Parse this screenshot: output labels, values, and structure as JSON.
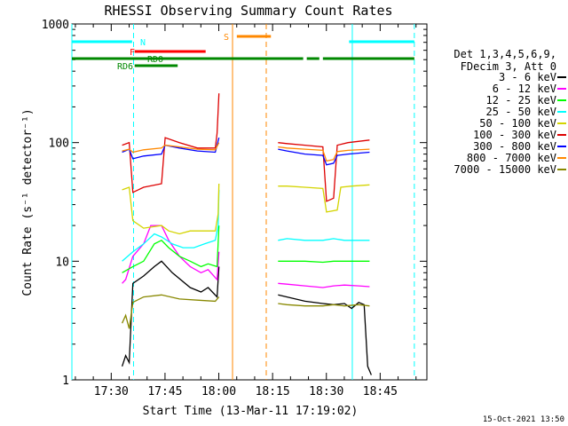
{
  "chart_data": {
    "type": "line",
    "title": "RHESSI Observing Summary Count Rates",
    "xlabel": "Start Time (13-Mar-11 17:19:02)",
    "ylabel": "Count Rate (s⁻¹ detector⁻¹)",
    "yscale": "log",
    "ylim": [
      1,
      1000
    ],
    "xlim_minutes": [
      0,
      99
    ],
    "x_ticks": [
      {
        "label": "17:30",
        "m": 10.97
      },
      {
        "label": "17:45",
        "m": 25.97
      },
      {
        "label": "18:00",
        "m": 40.97
      },
      {
        "label": "18:15",
        "m": 55.97
      },
      {
        "label": "18:30",
        "m": 70.97
      },
      {
        "label": "18:45",
        "m": 85.97
      }
    ],
    "y_ticks": [
      {
        "label": "1",
        "v": 1
      },
      {
        "label": "10",
        "v": 10
      },
      {
        "label": "100",
        "v": 100
      },
      {
        "label": "1000",
        "v": 1000
      }
    ],
    "info": [
      "Det 1,3,4,5,6,9,",
      "FDecim 3, Att 0"
    ],
    "footer_date": "15-Oct-2021 13:50",
    "series": [
      {
        "name": "3 - 6 keV",
        "color": "#000000",
        "segments": [
          [
            [
              14,
              1.3
            ],
            [
              15,
              1.6
            ],
            [
              16,
              1.4
            ],
            [
              17,
              6.5
            ],
            [
              20,
              7.5
            ],
            [
              23,
              9
            ],
            [
              25,
              10
            ],
            [
              28,
              8
            ],
            [
              33,
              6
            ],
            [
              36,
              5.5
            ],
            [
              38,
              6
            ],
            [
              40.5,
              5
            ],
            [
              41,
              9
            ]
          ],
          [
            [
              57.5,
              5.2
            ],
            [
              60,
              5
            ],
            [
              65,
              4.6
            ],
            [
              70,
              4.4
            ],
            [
              73,
              4.3
            ],
            [
              76,
              4.4
            ],
            [
              78,
              4
            ],
            [
              80,
              4.5
            ],
            [
              81.5,
              4.3
            ],
            [
              82.5,
              1.3
            ],
            [
              83.5,
              1.1
            ]
          ]
        ]
      },
      {
        "name": "6 - 12 keV",
        "color": "#ff00ff",
        "segments": [
          [
            [
              14,
              6.5
            ],
            [
              15,
              7
            ],
            [
              17,
              11
            ],
            [
              20,
              14
            ],
            [
              22,
              20
            ],
            [
              25,
              20
            ],
            [
              27,
              15
            ],
            [
              30,
              11
            ],
            [
              33,
              9
            ],
            [
              36,
              8
            ],
            [
              38,
              8.5
            ],
            [
              40.5,
              7
            ],
            [
              41,
              12
            ]
          ],
          [
            [
              57.5,
              6.5
            ],
            [
              60,
              6.4
            ],
            [
              65,
              6.2
            ],
            [
              70,
              6
            ],
            [
              73,
              6.2
            ],
            [
              76,
              6.3
            ],
            [
              80,
              6.2
            ],
            [
              83,
              6.1
            ]
          ]
        ]
      },
      {
        "name": "12 - 25 keV",
        "color": "#00ff00",
        "segments": [
          [
            [
              14,
              8
            ],
            [
              17,
              9
            ],
            [
              20,
              10
            ],
            [
              23,
              14
            ],
            [
              25,
              15
            ],
            [
              27,
              13
            ],
            [
              30,
              11
            ],
            [
              33,
              10
            ],
            [
              36,
              9
            ],
            [
              38,
              9.5
            ],
            [
              40.5,
              9
            ],
            [
              41,
              20
            ]
          ],
          [
            [
              57.5,
              10
            ],
            [
              60,
              10
            ],
            [
              65,
              10
            ],
            [
              70,
              9.8
            ],
            [
              73,
              10
            ],
            [
              76,
              10
            ],
            [
              80,
              10
            ],
            [
              83,
              10
            ]
          ]
        ]
      },
      {
        "name": "25 - 50 keV",
        "color": "#00ffff",
        "segments": [
          [
            [
              14,
              10
            ],
            [
              17,
              12
            ],
            [
              20,
              14
            ],
            [
              23,
              17
            ],
            [
              25,
              16
            ],
            [
              28,
              14
            ],
            [
              31,
              13
            ],
            [
              34,
              13
            ],
            [
              37,
              14
            ],
            [
              40,
              15
            ],
            [
              40.8,
              20
            ],
            [
              41,
              40
            ]
          ],
          [
            [
              57.5,
              15
            ],
            [
              60,
              15.5
            ],
            [
              65,
              15
            ],
            [
              70,
              15
            ],
            [
              73,
              15.5
            ],
            [
              76,
              15
            ],
            [
              80,
              15
            ],
            [
              83,
              15
            ]
          ]
        ]
      },
      {
        "name": "50 - 100 keV",
        "color": "#d4d400",
        "segments": [
          [
            [
              14,
              40
            ],
            [
              16,
              42
            ],
            [
              17,
              22
            ],
            [
              20,
              19
            ],
            [
              25,
              20
            ],
            [
              27,
              18
            ],
            [
              30,
              17
            ],
            [
              33,
              18
            ],
            [
              37,
              18
            ],
            [
              40,
              18
            ],
            [
              40.8,
              25
            ],
            [
              41,
              45
            ]
          ],
          [
            [
              57.5,
              43
            ],
            [
              60,
              43
            ],
            [
              65,
              42
            ],
            [
              70,
              41
            ],
            [
              71,
              26
            ],
            [
              74,
              27
            ],
            [
              75,
              42
            ],
            [
              78,
              43
            ],
            [
              83,
              44
            ]
          ]
        ]
      },
      {
        "name": "100 - 300 keV",
        "color": "#dd0000",
        "segments": [
          [
            [
              14,
              95
            ],
            [
              16,
              100
            ],
            [
              17,
              38
            ],
            [
              20,
              42
            ],
            [
              25,
              45
            ],
            [
              26,
              110
            ],
            [
              30,
              100
            ],
            [
              35,
              90
            ],
            [
              40,
              90
            ],
            [
              40.5,
              120
            ],
            [
              41,
              260
            ]
          ],
          [
            [
              57.5,
              100
            ],
            [
              60,
              98
            ],
            [
              65,
              95
            ],
            [
              70,
              92
            ],
            [
              71,
              32
            ],
            [
              73,
              34
            ],
            [
              74,
              95
            ],
            [
              77,
              100
            ],
            [
              83,
              105
            ]
          ]
        ]
      },
      {
        "name": "300 - 800 keV",
        "color": "#0000ff",
        "segments": [
          [
            [
              14,
              83
            ],
            [
              16,
              88
            ],
            [
              17,
              73
            ],
            [
              20,
              77
            ],
            [
              25,
              80
            ],
            [
              26,
              95
            ],
            [
              30,
              90
            ],
            [
              35,
              85
            ],
            [
              40,
              83
            ],
            [
              41,
              110
            ]
          ],
          [
            [
              57.5,
              88
            ],
            [
              60,
              85
            ],
            [
              65,
              80
            ],
            [
              70,
              78
            ],
            [
              71,
              65
            ],
            [
              73,
              67
            ],
            [
              74,
              78
            ],
            [
              77,
              80
            ],
            [
              83,
              83
            ]
          ]
        ]
      },
      {
        "name": "800 - 7000 keV",
        "color": "#ff8800",
        "segments": [
          [
            [
              14,
              85
            ],
            [
              16,
              88
            ],
            [
              17,
              83
            ],
            [
              20,
              87
            ],
            [
              25,
              90
            ],
            [
              26,
              95
            ],
            [
              30,
              92
            ],
            [
              35,
              88
            ],
            [
              40,
              87
            ],
            [
              41,
              100
            ]
          ],
          [
            [
              57.5,
              92
            ],
            [
              60,
              90
            ],
            [
              65,
              88
            ],
            [
              70,
              86
            ],
            [
              71,
              70
            ],
            [
              73,
              72
            ],
            [
              74,
              84
            ],
            [
              77,
              86
            ],
            [
              83,
              88
            ]
          ]
        ]
      },
      {
        "name": "7000 - 15000 keV",
        "color": "#888800",
        "segments": [
          [
            [
              14,
              3
            ],
            [
              15,
              3.5
            ],
            [
              16,
              2.7
            ],
            [
              17,
              4.5
            ],
            [
              20,
              5
            ],
            [
              25,
              5.2
            ],
            [
              30,
              4.8
            ],
            [
              35,
              4.7
            ],
            [
              40,
              4.6
            ],
            [
              41,
              5
            ]
          ],
          [
            [
              57.5,
              4.4
            ],
            [
              60,
              4.3
            ],
            [
              65,
              4.2
            ],
            [
              70,
              4.2
            ],
            [
              73,
              4.3
            ],
            [
              76,
              4.2
            ],
            [
              80,
              4.3
            ],
            [
              83,
              4.2
            ]
          ]
        ]
      }
    ],
    "state_bars": [
      {
        "label": "N",
        "color": "#00ffff",
        "segments": [
          [
            0,
            16.8
          ],
          [
            77.3,
            95.5
          ]
        ]
      },
      {
        "label": "S",
        "color": "#ff8800",
        "segments": [
          [
            46,
            55.5
          ]
        ]
      },
      {
        "label": "F",
        "color": "#ff0000",
        "segments": [
          [
            17.5,
            37.3
          ]
        ]
      },
      {
        "label": "RDO",
        "color": "#008800",
        "segments": [
          [
            0,
            64.5
          ],
          [
            65.5,
            69
          ],
          [
            70,
            95.5
          ]
        ]
      },
      {
        "label": "RD6",
        "color": "#008800",
        "segments": [
          [
            17.5,
            29.5
          ]
        ]
      }
    ],
    "vlines": [
      {
        "m": 0,
        "color": "#00ffff",
        "dash": false
      },
      {
        "m": 17.2,
        "color": "#00ffff",
        "dash": true
      },
      {
        "m": 44.8,
        "color": "#ff8800",
        "dash": false
      },
      {
        "m": 54.2,
        "color": "#ff8800",
        "dash": true
      },
      {
        "m": 78.2,
        "color": "#00ffff",
        "dash": false
      },
      {
        "m": 95.5,
        "color": "#00ffff",
        "dash": true
      }
    ]
  }
}
